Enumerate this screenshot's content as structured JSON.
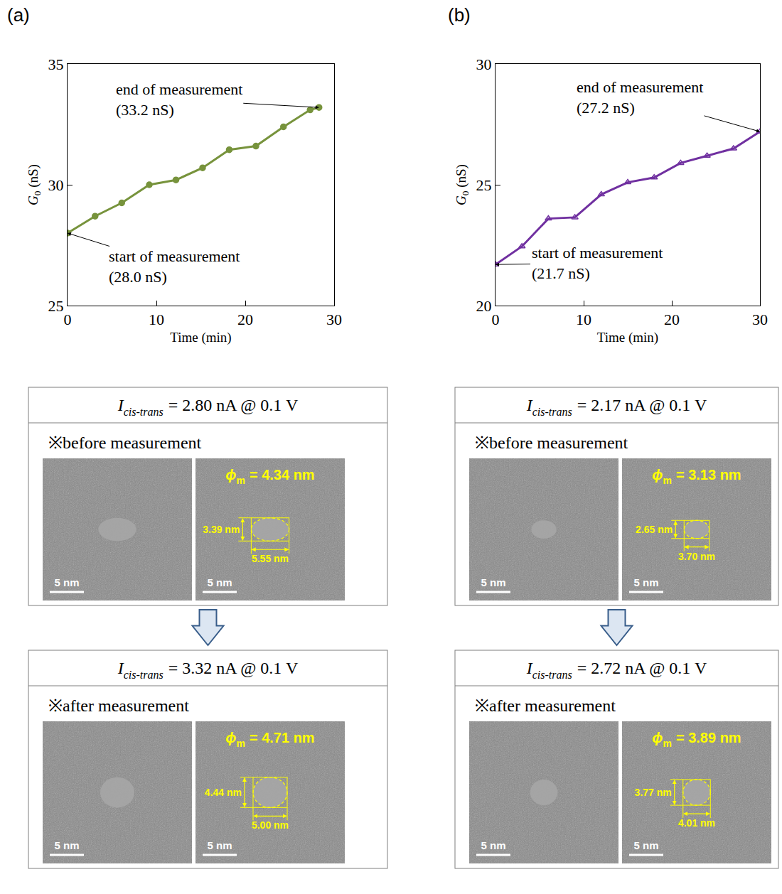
{
  "chart_data": [
    {
      "type": "line",
      "x": [
        0,
        3.1,
        6.1,
        9.2,
        12.2,
        15.2,
        18.2,
        21.2,
        24.3,
        27.3,
        28.3
      ],
      "values": [
        28.0,
        28.7,
        29.25,
        30.0,
        30.2,
        30.7,
        31.45,
        31.6,
        32.4,
        33.1,
        33.2
      ],
      "color": "#77933c",
      "marker": "circle",
      "xlim": [
        0,
        30
      ],
      "xticks": [
        0,
        10,
        20,
        30
      ],
      "ylim": [
        25,
        35
      ],
      "yticks": [
        25,
        30,
        35
      ],
      "x_label": "Time (min)",
      "y_label": {
        "symbol": "G",
        "subscript": "0",
        "unit": "(nS)"
      },
      "annotations": [
        {
          "lines": [
            "end of measurement",
            "(33.2 nS)"
          ],
          "x": 28.3,
          "y": 33.2
        },
        {
          "lines": [
            "start of measurement",
            "(28.0 nS)"
          ],
          "x": 0,
          "y": 28.0
        }
      ]
    },
    {
      "type": "line",
      "x": [
        0,
        3,
        6,
        9,
        12,
        15,
        18,
        21,
        24,
        27,
        30
      ],
      "values": [
        21.7,
        22.45,
        23.6,
        23.65,
        24.6,
        25.1,
        25.3,
        25.9,
        26.2,
        26.5,
        27.2
      ],
      "color": "#7030a0",
      "marker": "triangle-up-open",
      "xlim": [
        0,
        30
      ],
      "xticks": [
        0,
        10,
        20,
        30
      ],
      "ylim": [
        20,
        30
      ],
      "yticks": [
        20,
        25,
        30
      ],
      "x_label": "Time (min)",
      "y_label": {
        "symbol": "G",
        "subscript": "0",
        "unit": "(nS)"
      },
      "annotations": [
        {
          "lines": [
            "end of measurement",
            "(27.2 nS)"
          ],
          "x": 30,
          "y": 27.2
        },
        {
          "lines": [
            "start of measurement",
            "(21.7 nS)"
          ],
          "x": 0,
          "y": 21.7
        }
      ]
    }
  ],
  "panels": [
    {
      "label": "(a)",
      "before": {
        "current": {
          "symbol": "I",
          "subscript": "cis-trans",
          "text": "= 2.80 nA @ 0.1 V"
        },
        "note": "※before measurement",
        "scale_bar": {
          "value": 5,
          "label": "5 nm"
        },
        "diameter": {
          "symbol": "ϕ",
          "subscript": "m",
          "text": "= 4.34 nm"
        },
        "dims": [
          {
            "value": 5.55,
            "label": "5.55 nm"
          },
          {
            "value": 3.39,
            "label": "3.39 nm"
          }
        ]
      },
      "after": {
        "current": {
          "symbol": "I",
          "subscript": "cis-trans",
          "text": "= 3.32 nA @ 0.1 V"
        },
        "note": "※after measurement",
        "scale_bar": {
          "value": 5,
          "label": "5 nm"
        },
        "diameter": {
          "symbol": "ϕ",
          "subscript": "m",
          "text": "= 4.71 nm"
        },
        "dims": [
          {
            "value": 5.0,
            "label": "5.00 nm"
          },
          {
            "value": 4.44,
            "label": "4.44 nm"
          }
        ]
      }
    },
    {
      "label": "(b)",
      "before": {
        "current": {
          "symbol": "I",
          "subscript": "cis-trans",
          "text": "= 2.17 nA @ 0.1 V"
        },
        "note": "※before measurement",
        "scale_bar": {
          "value": 5,
          "label": "5 nm"
        },
        "diameter": {
          "symbol": "ϕ",
          "subscript": "m",
          "text": "= 3.13 nm"
        },
        "dims": [
          {
            "value": 3.7,
            "label": "3.70 nm"
          },
          {
            "value": 2.65,
            "label": "2.65 nm"
          }
        ]
      },
      "after": {
        "current": {
          "symbol": "I",
          "subscript": "cis-trans",
          "text": "= 2.72 nA @ 0.1 V"
        },
        "note": "※after measurement",
        "scale_bar": {
          "value": 5,
          "label": "5 nm"
        },
        "diameter": {
          "symbol": "ϕ",
          "subscript": "m",
          "text": "= 3.89 nm"
        },
        "dims": [
          {
            "value": 4.01,
            "label": "4.01 nm"
          },
          {
            "value": 3.77,
            "label": "3.77 nm"
          }
        ]
      }
    }
  ]
}
